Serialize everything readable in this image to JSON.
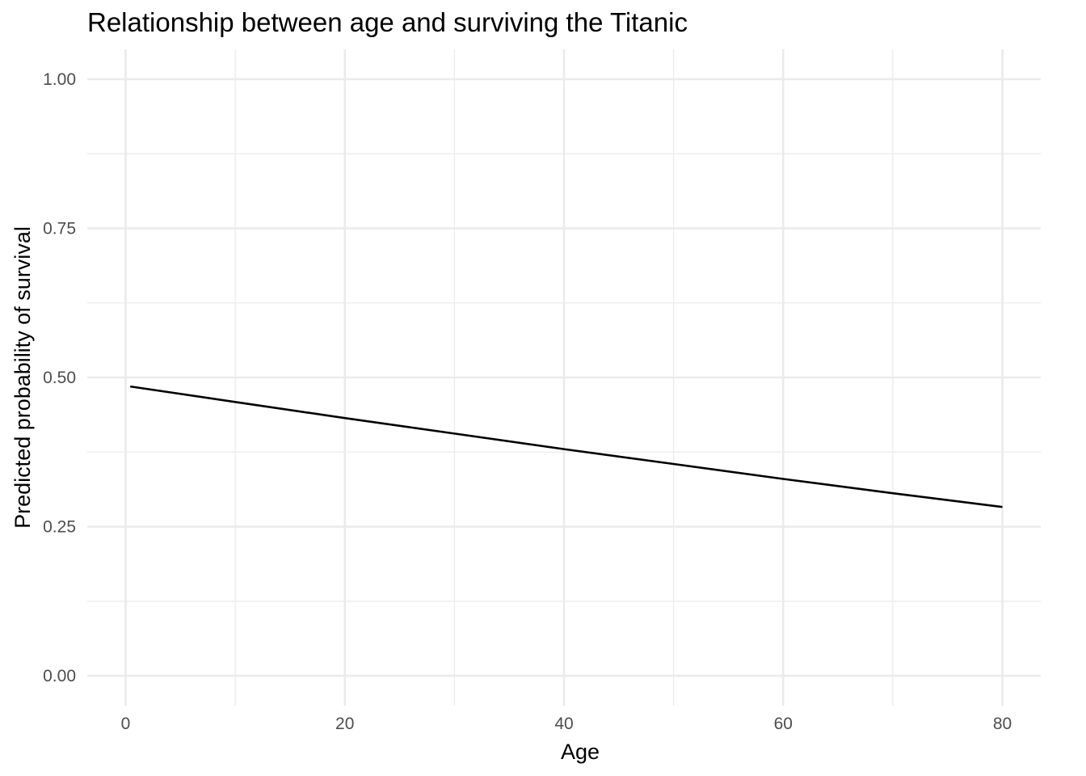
{
  "chart_data": {
    "type": "line",
    "title": "Relationship between age and surviving the Titanic",
    "xlabel": "Age",
    "ylabel": "Predicted probability of survival",
    "xlim": [
      -3.5,
      83.5
    ],
    "ylim": [
      -0.05,
      1.05
    ],
    "x_ticks": [
      0,
      20,
      40,
      60,
      80
    ],
    "x_tick_labels": [
      "0",
      "20",
      "40",
      "60",
      "80"
    ],
    "x_minor_ticks": [
      10,
      30,
      50,
      70
    ],
    "y_ticks": [
      0,
      0.25,
      0.5,
      0.75,
      1
    ],
    "y_tick_labels": [
      "0.00",
      "0.25",
      "0.50",
      "0.75",
      "1.00"
    ],
    "y_minor_ticks": [
      0.125,
      0.375,
      0.625,
      0.875
    ],
    "grid": true,
    "series": [
      {
        "color": "#000000",
        "points": [
          {
            "x": 0.42,
            "y": 0.485
          },
          {
            "x": 10,
            "y": 0.459
          },
          {
            "x": 20,
            "y": 0.432
          },
          {
            "x": 30,
            "y": 0.406
          },
          {
            "x": 40,
            "y": 0.38
          },
          {
            "x": 50,
            "y": 0.355
          },
          {
            "x": 60,
            "y": 0.33
          },
          {
            "x": 70,
            "y": 0.306
          },
          {
            "x": 80,
            "y": 0.283
          }
        ]
      }
    ]
  }
}
